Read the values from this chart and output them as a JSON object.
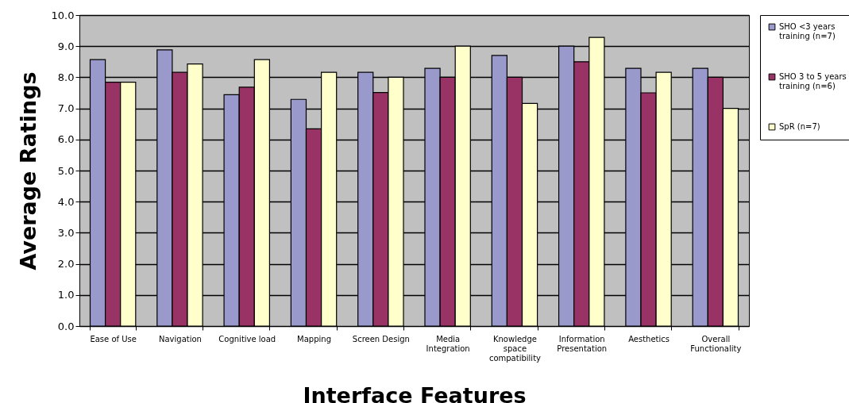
{
  "chart_data": {
    "type": "bar",
    "xlabel": "Interface Features",
    "ylabel": "Average Ratings",
    "categories": [
      "Ease of Use",
      "Navigation",
      "Cognitive load",
      "Mapping",
      "Screen Design",
      "Media Integration",
      "Knowledge space compatibility",
      "Information Presentation",
      "Aesthetics",
      "Overall Functionality"
    ],
    "series": [
      {
        "name": "SHO <3 years training (n=7)",
        "color": "#9999cc",
        "values": [
          8.57,
          8.88,
          7.44,
          7.29,
          8.16,
          8.29,
          8.7,
          9.0,
          8.29,
          8.29
        ]
      },
      {
        "name": "SHO 3 to 5 years training (n=6)",
        "color": "#993366",
        "values": [
          7.84,
          8.16,
          7.68,
          6.34,
          7.51,
          8.0,
          8.0,
          8.5,
          7.5,
          8.0
        ]
      },
      {
        "name": "SpR (n=7)",
        "color": "#ffffcc",
        "values": [
          7.84,
          8.43,
          8.57,
          8.16,
          8.0,
          9.0,
          7.16,
          9.28,
          8.16,
          7.0
        ]
      }
    ],
    "ylim": [
      0,
      10
    ],
    "yticks": [
      {
        "value": 0,
        "label": "0.0"
      },
      {
        "value": 1,
        "label": "1.0"
      },
      {
        "value": 2,
        "label": "2.0"
      },
      {
        "value": 3,
        "label": "3.0"
      },
      {
        "value": 4,
        "label": "4.0"
      },
      {
        "value": 5,
        "label": "5.0"
      },
      {
        "value": 6,
        "label": "6.0"
      },
      {
        "value": 7,
        "label": "7.0"
      },
      {
        "value": 8,
        "label": "8.0"
      },
      {
        "value": 9,
        "label": "9.0"
      },
      {
        "value": 10,
        "label": "10.0"
      }
    ],
    "grid": "y",
    "legend": "right"
  }
}
